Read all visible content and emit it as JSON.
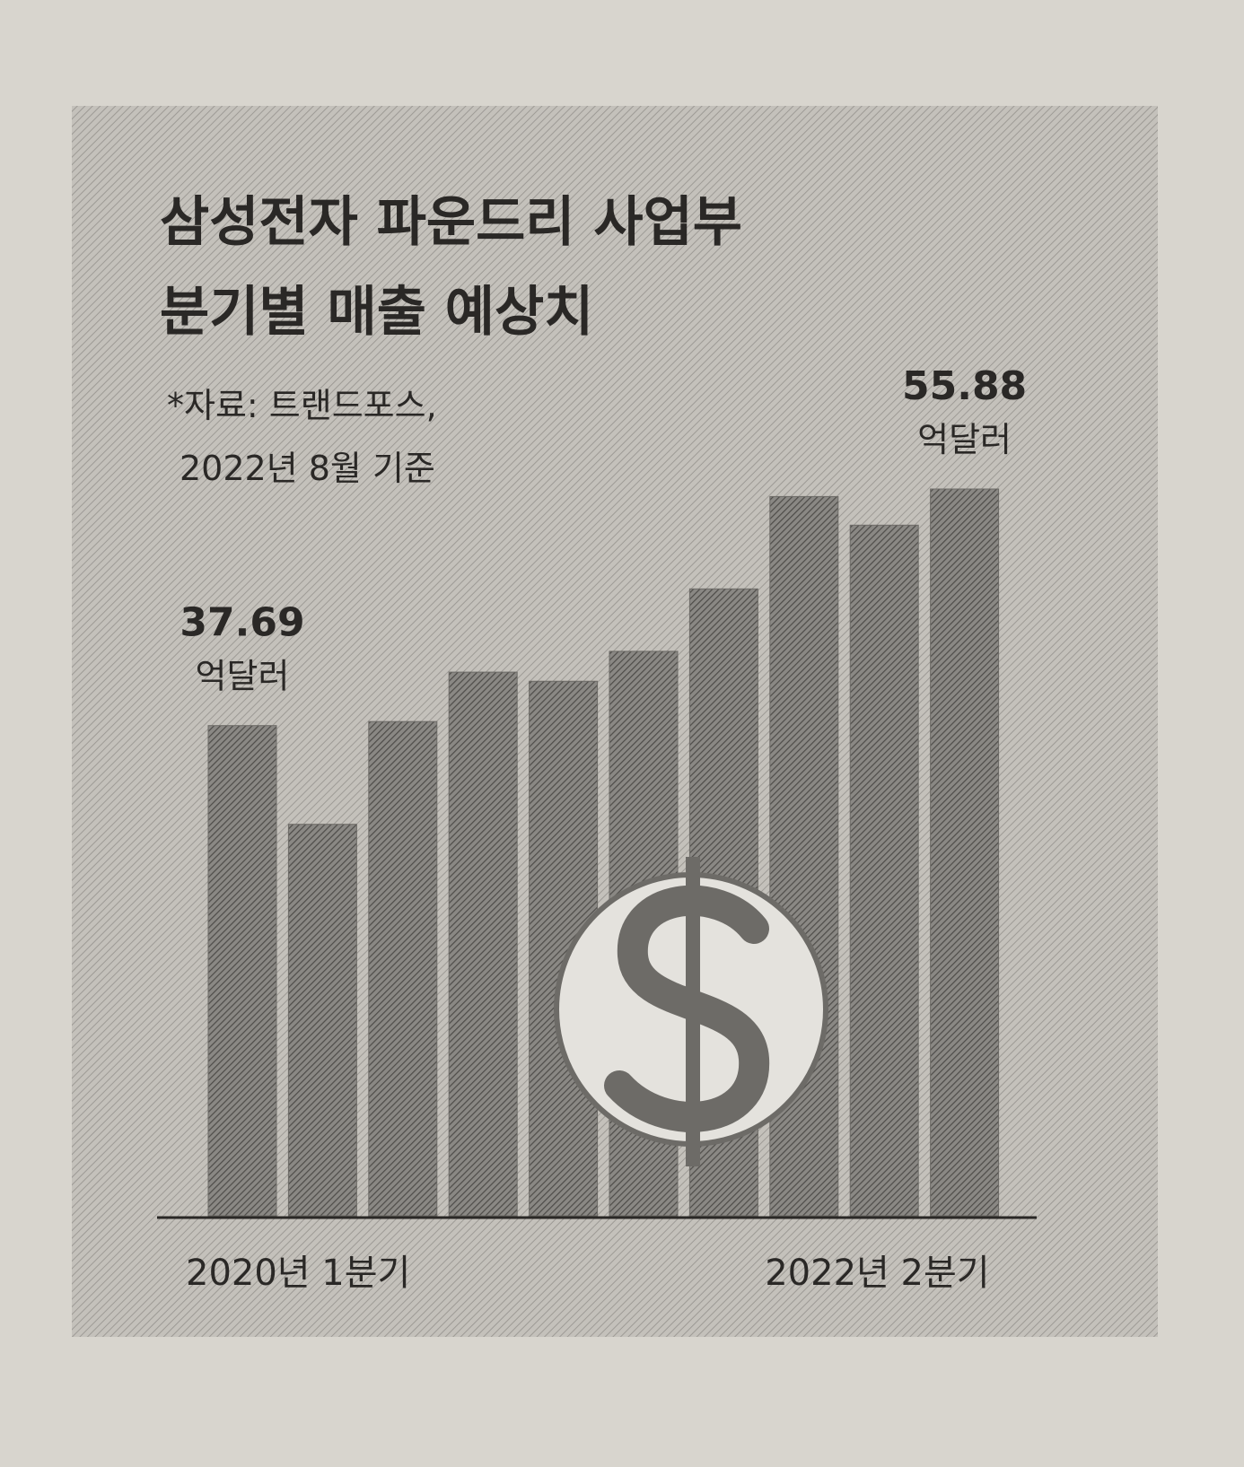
{
  "chart_data": {
    "type": "bar",
    "title": [
      "삼성전자 파운드리 사업부",
      "분기별 매출 예상치"
    ],
    "source": [
      "*자료: 트랜드포스,",
      "2022년 8월 기준"
    ],
    "unit": "억달러",
    "categories": [
      "2020년 1분기",
      null,
      null,
      null,
      null,
      null,
      null,
      null,
      null,
      "2022년 2분기"
    ],
    "values": [
      37.69,
      30.1,
      38.0,
      41.8,
      41.1,
      43.4,
      48.2,
      55.3,
      53.1,
      55.88
    ],
    "value_labels": [
      "37.69",
      null,
      null,
      null,
      null,
      null,
      null,
      null,
      null,
      "55.88"
    ],
    "color": "#6d6b67"
  }
}
